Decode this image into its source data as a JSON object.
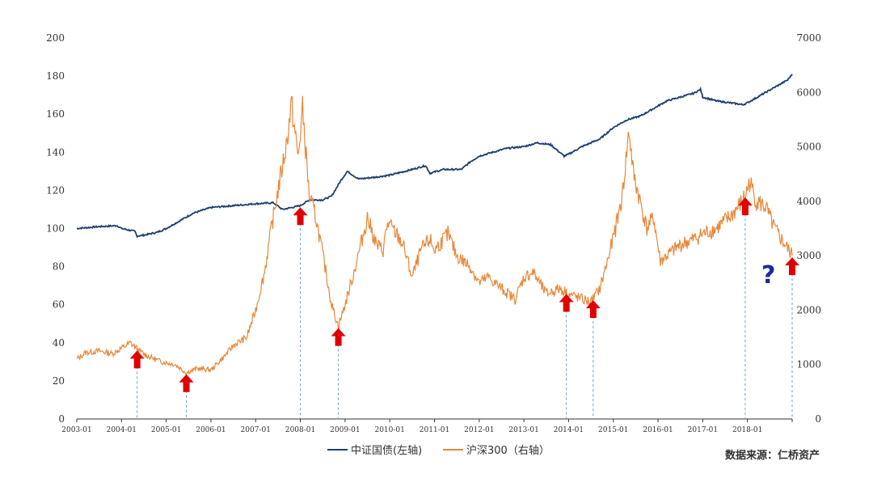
{
  "chart_data": {
    "type": "line",
    "title": "",
    "y_left": {
      "min": 0,
      "max": 200,
      "ticks": [
        "200",
        "180",
        "160",
        "140",
        "120",
        "100",
        "80",
        "60",
        "40",
        "20",
        "0"
      ]
    },
    "y_right": {
      "min": 0,
      "max": 7000,
      "ticks": [
        "7000",
        "6000",
        "5000",
        "4000",
        "3000",
        "2000",
        "1000",
        "0"
      ]
    },
    "x_ticks": [
      "2003-01",
      "2004-01",
      "2005-01",
      "2006-01",
      "2007-01",
      "2008-01",
      "2009-01",
      "2010-01",
      "2011-01",
      "2012-01",
      "2013-01",
      "2014-01",
      "2015-01",
      "2016-01",
      "2017-01",
      "2018-01"
    ],
    "x_range": [
      2003.0,
      2019.0
    ],
    "series": [
      {
        "name": "中证国债(左轴)",
        "axis": "left",
        "color": "#1F3F73",
        "points": [
          [
            2003.0,
            100
          ],
          [
            2003.5,
            101
          ],
          [
            2003.9,
            101.5
          ],
          [
            2004.0,
            100
          ],
          [
            2004.3,
            98.5
          ],
          [
            2004.35,
            96
          ],
          [
            2004.5,
            96.5
          ],
          [
            2004.8,
            98
          ],
          [
            2005.0,
            100
          ],
          [
            2005.3,
            104
          ],
          [
            2005.6,
            108
          ],
          [
            2006.0,
            111
          ],
          [
            2006.5,
            112
          ],
          [
            2007.0,
            113
          ],
          [
            2007.4,
            113.5
          ],
          [
            2007.6,
            110
          ],
          [
            2007.8,
            111
          ],
          [
            2008.0,
            112
          ],
          [
            2008.2,
            115
          ],
          [
            2008.5,
            115
          ],
          [
            2008.7,
            117
          ],
          [
            2008.9,
            125
          ],
          [
            2009.05,
            130
          ],
          [
            2009.3,
            126
          ],
          [
            2009.7,
            127
          ],
          [
            2010.0,
            128
          ],
          [
            2010.5,
            131
          ],
          [
            2010.8,
            133
          ],
          [
            2010.9,
            129
          ],
          [
            2011.2,
            131
          ],
          [
            2011.6,
            131
          ],
          [
            2011.8,
            135
          ],
          [
            2012.0,
            138
          ],
          [
            2012.3,
            140
          ],
          [
            2012.6,
            142
          ],
          [
            2013.0,
            143
          ],
          [
            2013.3,
            145
          ],
          [
            2013.6,
            144
          ],
          [
            2013.9,
            138
          ],
          [
            2014.0,
            139
          ],
          [
            2014.3,
            143
          ],
          [
            2014.7,
            147
          ],
          [
            2015.0,
            153
          ],
          [
            2015.3,
            157
          ],
          [
            2015.6,
            159
          ],
          [
            2015.9,
            163
          ],
          [
            2016.2,
            167
          ],
          [
            2016.5,
            169
          ],
          [
            2016.8,
            171
          ],
          [
            2016.95,
            173
          ],
          [
            2017.0,
            169
          ],
          [
            2017.3,
            167
          ],
          [
            2017.6,
            166
          ],
          [
            2017.9,
            165
          ],
          [
            2018.0,
            166
          ],
          [
            2018.3,
            170
          ],
          [
            2018.6,
            174
          ],
          [
            2018.9,
            178
          ],
          [
            2019.0,
            181
          ]
        ]
      },
      {
        "name": "沪深300（右轴）",
        "axis": "right",
        "color": "#E8883A",
        "points": [
          [
            2003.0,
            1100
          ],
          [
            2003.2,
            1220
          ],
          [
            2003.5,
            1250
          ],
          [
            2003.8,
            1200
          ],
          [
            2004.0,
            1300
          ],
          [
            2004.2,
            1400
          ],
          [
            2004.4,
            1250
          ],
          [
            2004.6,
            1150
          ],
          [
            2004.9,
            1050
          ],
          [
            2005.2,
            1000
          ],
          [
            2005.45,
            850
          ],
          [
            2005.7,
            930
          ],
          [
            2006.0,
            900
          ],
          [
            2006.3,
            1150
          ],
          [
            2006.5,
            1350
          ],
          [
            2006.8,
            1500
          ],
          [
            2007.0,
            2000
          ],
          [
            2007.2,
            2700
          ],
          [
            2007.35,
            3500
          ],
          [
            2007.5,
            4200
          ],
          [
            2007.7,
            5100
          ],
          [
            2007.8,
            5800
          ],
          [
            2007.95,
            4800
          ],
          [
            2008.05,
            5700
          ],
          [
            2008.2,
            4100
          ],
          [
            2008.35,
            3700
          ],
          [
            2008.55,
            2800
          ],
          [
            2008.7,
            2100
          ],
          [
            2008.85,
            1700
          ],
          [
            2009.0,
            2100
          ],
          [
            2009.2,
            2700
          ],
          [
            2009.5,
            3700
          ],
          [
            2009.7,
            3200
          ],
          [
            2009.85,
            3100
          ],
          [
            2009.95,
            3600
          ],
          [
            2010.15,
            3400
          ],
          [
            2010.3,
            3200
          ],
          [
            2010.5,
            2600
          ],
          [
            2010.7,
            3100
          ],
          [
            2010.9,
            3300
          ],
          [
            2011.0,
            3100
          ],
          [
            2011.3,
            3400
          ],
          [
            2011.5,
            3000
          ],
          [
            2011.8,
            2800
          ],
          [
            2012.0,
            2500
          ],
          [
            2012.2,
            2600
          ],
          [
            2012.5,
            2400
          ],
          [
            2012.8,
            2200
          ],
          [
            2013.0,
            2600
          ],
          [
            2013.2,
            2700
          ],
          [
            2013.5,
            2300
          ],
          [
            2013.8,
            2400
          ],
          [
            2014.0,
            2300
          ],
          [
            2014.3,
            2200
          ],
          [
            2014.5,
            2150
          ],
          [
            2014.7,
            2400
          ],
          [
            2014.9,
            3000
          ],
          [
            2015.05,
            3500
          ],
          [
            2015.2,
            4100
          ],
          [
            2015.35,
            5300
          ],
          [
            2015.45,
            4500
          ],
          [
            2015.6,
            4000
          ],
          [
            2015.75,
            3500
          ],
          [
            2015.9,
            3700
          ],
          [
            2016.05,
            2900
          ],
          [
            2016.2,
            3000
          ],
          [
            2016.5,
            3200
          ],
          [
            2016.8,
            3300
          ],
          [
            2017.0,
            3400
          ],
          [
            2017.3,
            3500
          ],
          [
            2017.6,
            3700
          ],
          [
            2017.8,
            3900
          ],
          [
            2017.95,
            4100
          ],
          [
            2018.05,
            4350
          ],
          [
            2018.2,
            4000
          ],
          [
            2018.4,
            3900
          ],
          [
            2018.6,
            3500
          ],
          [
            2018.8,
            3250
          ],
          [
            2019.0,
            3000
          ]
        ]
      }
    ],
    "legend": {
      "placement": "bottom-center"
    },
    "grid": false
  },
  "annotations": {
    "arrows_x": [
      2004.35,
      2005.45,
      2008.0,
      2008.85,
      2013.95,
      2014.55,
      2017.95,
      2019.0
    ],
    "arrow_color": "#E00000",
    "question_mark": "?",
    "question_color": "#1A2A9A"
  },
  "source": "数据来源：仁桥资产"
}
